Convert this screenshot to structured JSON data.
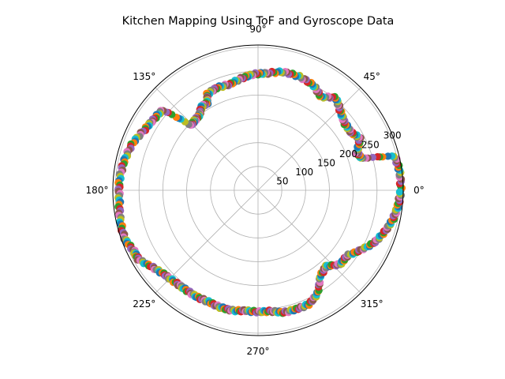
{
  "chart_data": {
    "type": "scatter",
    "projection": "polar",
    "title": "Kitchen Mapping Using ToF and Gyroscope Data",
    "theta_ticks": [
      "0°",
      "45°",
      "90°",
      "135°",
      "180°",
      "225°",
      "270°",
      "315°"
    ],
    "radial_ticks": [
      50,
      100,
      150,
      200,
      250,
      300
    ],
    "radial_tick_labels": [
      "50",
      "100",
      "150",
      "200",
      "250",
      "300"
    ],
    "rlim": [
      0,
      305
    ],
    "grid": true,
    "marker_colors": [
      "#1f77b4",
      "#ff7f0e",
      "#2ca02c",
      "#d62728",
      "#9467bd",
      "#8c564b",
      "#e377c2",
      "#7f7f7f",
      "#bcbd22",
      "#17becf"
    ],
    "outline": [
      {
        "theta": 0,
        "r": 300
      },
      {
        "theta": 8,
        "r": 300
      },
      {
        "theta": 14,
        "r": 296
      },
      {
        "theta": 17,
        "r": 228
      },
      {
        "theta": 21,
        "r": 222
      },
      {
        "theta": 27,
        "r": 240
      },
      {
        "theta": 32,
        "r": 230
      },
      {
        "theta": 38,
        "r": 230
      },
      {
        "theta": 44,
        "r": 240
      },
      {
        "theta": 50,
        "r": 254
      },
      {
        "theta": 56,
        "r": 236
      },
      {
        "theta": 62,
        "r": 249
      },
      {
        "theta": 70,
        "r": 254
      },
      {
        "theta": 78,
        "r": 254
      },
      {
        "theta": 86,
        "r": 246
      },
      {
        "theta": 92,
        "r": 244
      },
      {
        "theta": 98,
        "r": 238
      },
      {
        "theta": 105,
        "r": 230
      },
      {
        "theta": 112,
        "r": 232
      },
      {
        "theta": 118,
        "r": 228
      },
      {
        "theta": 120,
        "r": 212
      },
      {
        "theta": 124,
        "r": 212
      },
      {
        "theta": 128,
        "r": 200
      },
      {
        "theta": 132,
        "r": 198
      },
      {
        "theta": 136,
        "r": 196
      },
      {
        "theta": 140,
        "r": 262
      },
      {
        "theta": 146,
        "r": 265
      },
      {
        "theta": 152,
        "r": 270
      },
      {
        "theta": 160,
        "r": 282
      },
      {
        "theta": 168,
        "r": 288
      },
      {
        "theta": 176,
        "r": 292
      },
      {
        "theta": 184,
        "r": 292
      },
      {
        "theta": 192,
        "r": 296
      },
      {
        "theta": 200,
        "r": 298
      },
      {
        "theta": 206,
        "r": 290
      },
      {
        "theta": 210,
        "r": 290
      },
      {
        "theta": 216,
        "r": 274
      },
      {
        "theta": 222,
        "r": 264
      },
      {
        "theta": 228,
        "r": 260
      },
      {
        "theta": 234,
        "r": 258
      },
      {
        "theta": 240,
        "r": 258
      },
      {
        "theta": 246,
        "r": 256
      },
      {
        "theta": 252,
        "r": 258
      },
      {
        "theta": 258,
        "r": 258
      },
      {
        "theta": 264,
        "r": 254
      },
      {
        "theta": 270,
        "r": 255
      },
      {
        "theta": 276,
        "r": 255
      },
      {
        "theta": 282,
        "r": 262
      },
      {
        "theta": 288,
        "r": 262
      },
      {
        "theta": 294,
        "r": 262
      },
      {
        "theta": 300,
        "r": 250
      },
      {
        "theta": 306,
        "r": 222
      },
      {
        "theta": 312,
        "r": 214
      },
      {
        "theta": 318,
        "r": 232
      },
      {
        "theta": 324,
        "r": 232
      },
      {
        "theta": 330,
        "r": 250
      },
      {
        "theta": 336,
        "r": 268
      },
      {
        "theta": 342,
        "r": 280
      },
      {
        "theta": 348,
        "r": 290
      },
      {
        "theta": 354,
        "r": 296
      },
      {
        "theta": 360,
        "r": 300
      }
    ]
  }
}
